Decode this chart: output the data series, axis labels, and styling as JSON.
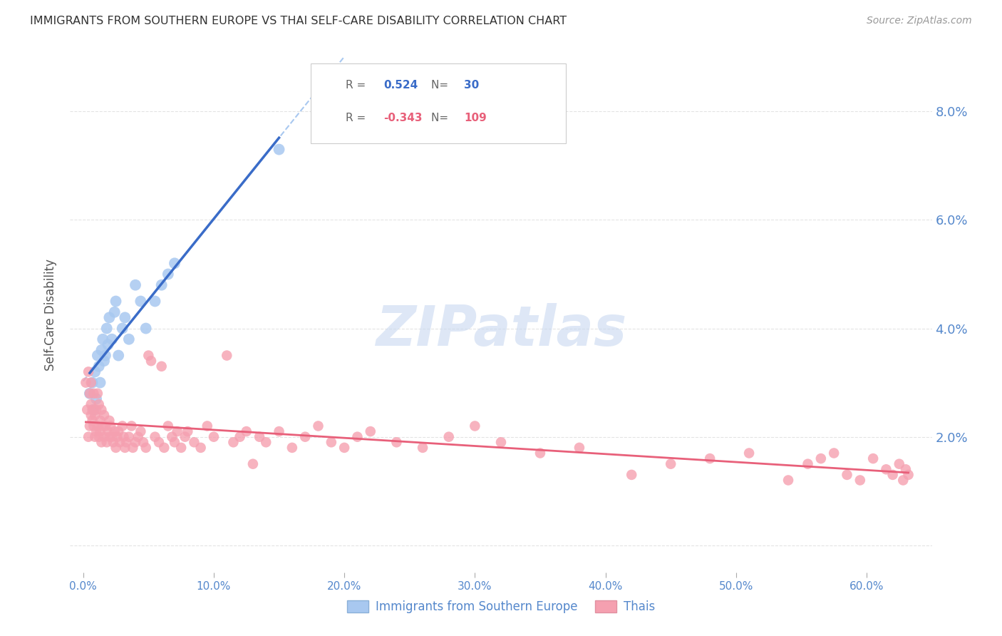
{
  "title": "IMMIGRANTS FROM SOUTHERN EUROPE VS THAI SELF-CARE DISABILITY CORRELATION CHART",
  "source": "Source: ZipAtlas.com",
  "ylabel_label": "Self-Care Disability",
  "x_ticks": [
    0.0,
    0.1,
    0.2,
    0.3,
    0.4,
    0.5,
    0.6
  ],
  "x_tick_labels": [
    "0.0%",
    "10.0%",
    "20.0%",
    "30.0%",
    "40.0%",
    "50.0%",
    "60.0%"
  ],
  "y_ticks": [
    0.0,
    0.02,
    0.04,
    0.06,
    0.08
  ],
  "y_tick_labels": [
    "",
    "2.0%",
    "4.0%",
    "6.0%",
    "8.0%"
  ],
  "xlim": [
    -0.01,
    0.65
  ],
  "ylim": [
    -0.005,
    0.09
  ],
  "legend_blue_label": "Immigrants from Southern Europe",
  "legend_pink_label": "Thais",
  "blue_scatter_color": "#a8c8f0",
  "pink_scatter_color": "#f5a0b0",
  "blue_line_color": "#3a6cc8",
  "pink_line_color": "#e8607a",
  "dashed_line_color": "#a8c8f0",
  "watermark_color": "#c8d8f0",
  "title_color": "#333333",
  "axis_label_color": "#555555",
  "tick_color": "#5588cc",
  "grid_color": "#dddddd",
  "background_color": "#ffffff",
  "blue_points_x": [
    0.005,
    0.007,
    0.008,
    0.009,
    0.01,
    0.011,
    0.012,
    0.013,
    0.014,
    0.015,
    0.016,
    0.017,
    0.018,
    0.019,
    0.02,
    0.022,
    0.024,
    0.025,
    0.027,
    0.03,
    0.032,
    0.035,
    0.04,
    0.044,
    0.048,
    0.055,
    0.06,
    0.065,
    0.07,
    0.15
  ],
  "blue_points_y": [
    0.028,
    0.03,
    0.025,
    0.032,
    0.027,
    0.035,
    0.033,
    0.03,
    0.036,
    0.038,
    0.034,
    0.035,
    0.04,
    0.037,
    0.042,
    0.038,
    0.043,
    0.045,
    0.035,
    0.04,
    0.042,
    0.038,
    0.048,
    0.045,
    0.04,
    0.045,
    0.048,
    0.05,
    0.052,
    0.073
  ],
  "pink_points_x": [
    0.002,
    0.003,
    0.004,
    0.004,
    0.005,
    0.005,
    0.006,
    0.006,
    0.006,
    0.007,
    0.007,
    0.008,
    0.008,
    0.009,
    0.009,
    0.01,
    0.01,
    0.011,
    0.011,
    0.012,
    0.012,
    0.013,
    0.013,
    0.014,
    0.014,
    0.015,
    0.016,
    0.016,
    0.017,
    0.018,
    0.019,
    0.02,
    0.02,
    0.021,
    0.022,
    0.023,
    0.024,
    0.025,
    0.026,
    0.027,
    0.028,
    0.03,
    0.031,
    0.032,
    0.033,
    0.035,
    0.037,
    0.038,
    0.04,
    0.042,
    0.044,
    0.046,
    0.048,
    0.05,
    0.052,
    0.055,
    0.058,
    0.06,
    0.062,
    0.065,
    0.068,
    0.07,
    0.072,
    0.075,
    0.078,
    0.08,
    0.085,
    0.09,
    0.095,
    0.1,
    0.11,
    0.115,
    0.12,
    0.125,
    0.13,
    0.135,
    0.14,
    0.15,
    0.16,
    0.17,
    0.18,
    0.19,
    0.2,
    0.21,
    0.22,
    0.24,
    0.26,
    0.28,
    0.3,
    0.32,
    0.35,
    0.38,
    0.42,
    0.45,
    0.48,
    0.51,
    0.54,
    0.555,
    0.565,
    0.575,
    0.585,
    0.595,
    0.605,
    0.615,
    0.62,
    0.625,
    0.628,
    0.63,
    0.632
  ],
  "pink_points_y": [
    0.03,
    0.025,
    0.032,
    0.02,
    0.028,
    0.022,
    0.026,
    0.024,
    0.03,
    0.025,
    0.023,
    0.022,
    0.028,
    0.024,
    0.02,
    0.021,
    0.025,
    0.022,
    0.028,
    0.02,
    0.026,
    0.021,
    0.023,
    0.019,
    0.025,
    0.022,
    0.02,
    0.024,
    0.022,
    0.019,
    0.021,
    0.02,
    0.023,
    0.022,
    0.02,
    0.019,
    0.021,
    0.018,
    0.02,
    0.021,
    0.019,
    0.022,
    0.02,
    0.018,
    0.019,
    0.02,
    0.022,
    0.018,
    0.019,
    0.02,
    0.021,
    0.019,
    0.018,
    0.035,
    0.034,
    0.02,
    0.019,
    0.033,
    0.018,
    0.022,
    0.02,
    0.019,
    0.021,
    0.018,
    0.02,
    0.021,
    0.019,
    0.018,
    0.022,
    0.02,
    0.035,
    0.019,
    0.02,
    0.021,
    0.015,
    0.02,
    0.019,
    0.021,
    0.018,
    0.02,
    0.022,
    0.019,
    0.018,
    0.02,
    0.021,
    0.019,
    0.018,
    0.02,
    0.022,
    0.019,
    0.017,
    0.018,
    0.013,
    0.015,
    0.016,
    0.017,
    0.012,
    0.015,
    0.016,
    0.017,
    0.013,
    0.012,
    0.016,
    0.014,
    0.013,
    0.015,
    0.012,
    0.014,
    0.013
  ]
}
